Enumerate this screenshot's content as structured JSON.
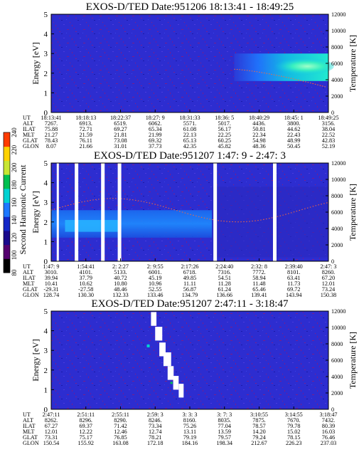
{
  "chart_data": [
    {
      "type": "heatmap",
      "title": "EXOS-D/TED   Date:951206  18:13:41 - 18:49:25",
      "ylabel": "Energy [eV]",
      "y2label": "Temperature [K]",
      "ylim": [
        0,
        5
      ],
      "yticks": [
        "0",
        "1",
        "2",
        "3",
        "4",
        "5"
      ],
      "y2lim": [
        0,
        12000
      ],
      "y2ticks": [
        "0",
        "2000",
        "4000",
        "6000",
        "8000",
        "10000",
        "12000"
      ],
      "row_labels": [
        "UT",
        "ALT",
        "ILAT",
        "MLT",
        "GLAT",
        "GLON"
      ],
      "columns": [
        [
          "18:13:41",
          "7267.",
          "75.88",
          "21.27",
          "78.43",
          "8.07"
        ],
        [
          "18:18:13",
          "6913.",
          "72.71",
          "21.59",
          "76.11",
          "21.66"
        ],
        [
          "18:22:37",
          "6519.",
          "69.27",
          "21.81",
          "73.08",
          "31.01"
        ],
        [
          "18:27: 9",
          "6062.",
          "65.34",
          "21.99",
          "69.32",
          "37.73"
        ],
        [
          "18:31:33",
          "5571.",
          "61.08",
          "22.13",
          "65.13",
          "42.35"
        ],
        [
          "18:36: 5",
          "5017.",
          "56.17",
          "22.25",
          "60.25",
          "45.82"
        ],
        [
          "18:40:29",
          "4436.",
          "50.81",
          "22.34",
          "54.98",
          "48.36"
        ],
        [
          "18:45: 1",
          "3800.",
          "44.62",
          "22.43",
          "48.99",
          "50.45"
        ],
        [
          "18:49:25",
          "3156.",
          "38.04",
          "22.52",
          "42.83",
          "52.19"
        ]
      ]
    },
    {
      "type": "heatmap",
      "title": "EXOS-D/TED   Date:951207  1:47: 9 - 2:47: 3",
      "ylabel": "Energy [eV]",
      "y2label": "Temperature [K]",
      "ylim": [
        0,
        5
      ],
      "yticks": [
        "0",
        "1",
        "2",
        "3",
        "4",
        "5"
      ],
      "y2lim": [
        0,
        12000
      ],
      "y2ticks": [
        "0",
        "2000",
        "4000",
        "6000",
        "8000",
        "10000",
        "12000"
      ],
      "row_labels": [
        "UT",
        "ALT",
        "ILAT",
        "MLT",
        "GLAT",
        "GLON"
      ],
      "columns": [
        [
          "1:47: 9",
          "3010.",
          "39.94",
          "10.41",
          "-29.31",
          "128.74"
        ],
        [
          "1:54:41",
          "4101.",
          "37.79",
          "10.62",
          "-27.58",
          "130.30"
        ],
        [
          "2: 2:27",
          "5133.",
          "40.72",
          "10.80",
          "48.46",
          "132.33"
        ],
        [
          "2: 9:55",
          "6001.",
          "45.19",
          "10.96",
          "52.55",
          "133.46"
        ],
        [
          "2:17:26",
          "6718.",
          "49.85",
          "11.11",
          "56.87",
          "134.79"
        ],
        [
          "2:24:40",
          "7316.",
          "54.51",
          "11.28",
          "61.24",
          "136.66"
        ],
        [
          "2:32: 8",
          "7772.",
          "58.94",
          "11.48",
          "65.46",
          "139.41"
        ],
        [
          "2:39:40",
          "8101.",
          "63.41",
          "11.73",
          "69.72",
          "143.94"
        ],
        [
          "2:47: 3",
          "8260.",
          "67.20",
          "12.01",
          "73.24",
          "150.38"
        ]
      ]
    },
    {
      "type": "heatmap",
      "title": "EXOS-D/TED   Date:951207  2:47:11 - 3:18:47",
      "ylabel": "Energy [eV]",
      "y2label": "Temperature [K]",
      "ylim": [
        0,
        5
      ],
      "yticks": [
        "0",
        "1",
        "2",
        "3",
        "4",
        "5"
      ],
      "y2lim": [
        0,
        12000
      ],
      "y2ticks": [
        "0",
        "2000",
        "4000",
        "6000",
        "8000",
        "10000",
        "12000"
      ],
      "row_labels": [
        "UT",
        "ALT",
        "ILAT",
        "MLT",
        "GLAT",
        "GLON"
      ],
      "columns": [
        [
          "2:47:11",
          "8262.",
          "67.27",
          "12.01",
          "73.31",
          "150.54"
        ],
        [
          "2:51:11",
          "8296.",
          "69.37",
          "12.22",
          "75.17",
          "155.92"
        ],
        [
          "2:55:11",
          "8290.",
          "71.42",
          "12.46",
          "76.85",
          "163.08"
        ],
        [
          "2:59: 3",
          "8246.",
          "73.34",
          "12.74",
          "78.21",
          "172.18"
        ],
        [
          "3: 3: 3",
          "8160.",
          "75.26",
          "13.11",
          "79.19",
          "184.16"
        ],
        [
          "3: 7: 3",
          "8035.",
          "77.04",
          "13.59",
          "79.57",
          "198.34"
        ],
        [
          "3:10:55",
          "7875.",
          "78.57",
          "14.20",
          "79.24",
          "212.67"
        ],
        [
          "3:14:55",
          "7670.",
          "79.78",
          "15.02",
          "78.15",
          "226.23"
        ],
        [
          "3:18:47",
          "7432.",
          "80.39",
          "16.03",
          "76.46",
          "237.03"
        ]
      ]
    }
  ],
  "colorbar": {
    "label": "Second Harmonic Current",
    "ticks": [
      "80",
      "100",
      "120",
      "140",
      "160",
      "180",
      "200",
      "220",
      "240"
    ],
    "colors": [
      "#000000",
      "#55006f",
      "#1a0a8c",
      "#1428c8",
      "#1e78ff",
      "#00d2d2",
      "#00c050",
      "#c8e632",
      "#ffd200",
      "#ff3c00"
    ]
  }
}
